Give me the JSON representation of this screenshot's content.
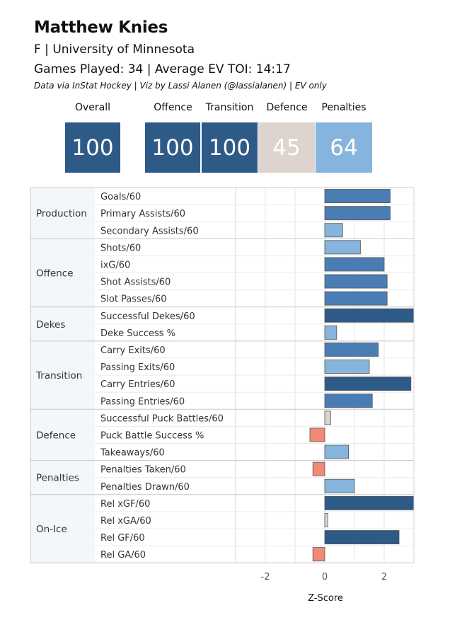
{
  "header": {
    "name": "Matthew Knies",
    "position_team": "F | University of Minnesota",
    "games_toi": "Games Played: 34 | Average EV TOI: 14:17",
    "credit": "Data via InStat Hockey | Viz by Lassi Alanen (@lassialanen) | EV only"
  },
  "scores": [
    {
      "label": "Overall",
      "value": "100",
      "color": "#2e5a87"
    },
    {
      "label": "Offence",
      "value": "100",
      "color": "#2e5a87"
    },
    {
      "label": "Transition",
      "value": "100",
      "color": "#2e5a87"
    },
    {
      "label": "Defence",
      "value": "45",
      "color": "#ddd3cf"
    },
    {
      "label": "Penalties",
      "value": "64",
      "color": "#86b4dc"
    }
  ],
  "colors": {
    "strong_high": "#2e5a87",
    "high": "#4a7db3",
    "mid": "#86b4dc",
    "neutral": "#d9d4d2",
    "low": "#f08a77"
  },
  "chart_data": {
    "type": "bar",
    "orientation": "horizontal",
    "xlabel": "Z-Score",
    "x_ticks": [
      -2,
      0,
      2
    ],
    "xlim": [
      -3,
      3
    ],
    "grid": true,
    "groups": [
      {
        "name": "Production",
        "metrics": [
          {
            "label": "Goals/60",
            "value": 2.2
          },
          {
            "label": "Primary Assists/60",
            "value": 2.2
          },
          {
            "label": "Secondary Assists/60",
            "value": 0.6
          }
        ]
      },
      {
        "name": "Offence",
        "metrics": [
          {
            "label": "Shots/60",
            "value": 1.2
          },
          {
            "label": "ixG/60",
            "value": 2.0
          },
          {
            "label": "Shot Assists/60",
            "value": 2.1
          },
          {
            "label": "Slot Passes/60",
            "value": 2.1
          }
        ]
      },
      {
        "name": "Dekes",
        "metrics": [
          {
            "label": "Successful Dekes/60",
            "value": 3.0
          },
          {
            "label": "Deke Success %",
            "value": 0.4
          }
        ]
      },
      {
        "name": "Transition",
        "metrics": [
          {
            "label": "Carry Exits/60",
            "value": 1.8
          },
          {
            "label": "Passing Exits/60",
            "value": 1.5
          },
          {
            "label": "Carry Entries/60",
            "value": 2.9
          },
          {
            "label": "Passing Entries/60",
            "value": 1.6
          }
        ]
      },
      {
        "name": "Defence",
        "metrics": [
          {
            "label": "Successful Puck Battles/60",
            "value": 0.2
          },
          {
            "label": "Puck Battle Success %",
            "value": -0.5
          },
          {
            "label": "Takeaways/60",
            "value": 0.8
          }
        ]
      },
      {
        "name": "Penalties",
        "metrics": [
          {
            "label": "Penalties Taken/60",
            "value": -0.4
          },
          {
            "label": "Penalties Drawn/60",
            "value": 1.0
          }
        ]
      },
      {
        "name": "On-Ice",
        "metrics": [
          {
            "label": "Rel xGF/60",
            "value": 3.0
          },
          {
            "label": "Rel xGA/60",
            "value": 0.1
          },
          {
            "label": "Rel GF/60",
            "value": 2.5
          },
          {
            "label": "Rel GA/60",
            "value": -0.4
          }
        ]
      }
    ]
  }
}
